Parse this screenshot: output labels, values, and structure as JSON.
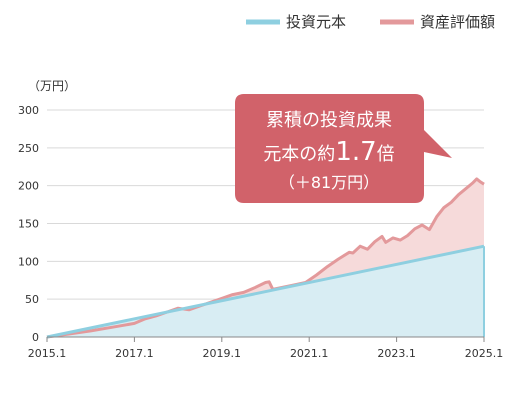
{
  "chart_data": {
    "type": "area",
    "unit_label": "（万円）",
    "ylim": [
      0,
      300
    ],
    "yticks": [
      0,
      50,
      100,
      150,
      200,
      250,
      300
    ],
    "xlim": [
      "2015.1",
      "2025.1"
    ],
    "xticks": [
      "2015.1",
      "2017.1",
      "2019.1",
      "2021.1",
      "2023.1",
      "2025.1"
    ],
    "grid": true,
    "legend_position": "top-right",
    "series": [
      {
        "name": "投資元本",
        "color": "#8ecfe0",
        "fill": "#d8edf3",
        "points": [
          [
            "2015.1",
            0
          ],
          [
            "2025.1",
            120
          ]
        ]
      },
      {
        "name": "資産評価額",
        "color": "#e3999b",
        "fill": "#f6dada",
        "points": [
          [
            "2015.1",
            0
          ],
          [
            "2015.7",
            4
          ],
          [
            "2016.1",
            8
          ],
          [
            "2016.7",
            13
          ],
          [
            "2017.1",
            18
          ],
          [
            "2017.4",
            24
          ],
          [
            "2017.7",
            28
          ],
          [
            "2017.10",
            33
          ],
          [
            "2018.1",
            38
          ],
          [
            "2018.4",
            36
          ],
          [
            "2018.7",
            41
          ],
          [
            "2018.10",
            46
          ],
          [
            "2019.1",
            51
          ],
          [
            "2019.4",
            56
          ],
          [
            "2019.7",
            59
          ],
          [
            "2019.10",
            65
          ],
          [
            "2020.1",
            72
          ],
          [
            "2020.2",
            73
          ],
          [
            "2020.3",
            63
          ],
          [
            "2020.6",
            66
          ],
          [
            "2020.9",
            69
          ],
          [
            "2020.12",
            72
          ],
          [
            "2021.3",
            82
          ],
          [
            "2021.6",
            93
          ],
          [
            "2021.9",
            103
          ],
          [
            "2021.12",
            112
          ],
          [
            "2022.1",
            111
          ],
          [
            "2022.3",
            120
          ],
          [
            "2022.5",
            116
          ],
          [
            "2022.7",
            126
          ],
          [
            "2022.9",
            133
          ],
          [
            "2022.10",
            125
          ],
          [
            "2022.12",
            131
          ],
          [
            "2023.2",
            128
          ],
          [
            "2023.4",
            134
          ],
          [
            "2023.6",
            143
          ],
          [
            "2023.8",
            148
          ],
          [
            "2023.10",
            142
          ],
          [
            "2023.12",
            159
          ],
          [
            "2024.2",
            171
          ],
          [
            "2024.4",
            178
          ],
          [
            "2024.6",
            188
          ],
          [
            "2024.8",
            196
          ],
          [
            "2024.10",
            204
          ],
          [
            "2024.11",
            209
          ],
          [
            "2024.12",
            205
          ],
          [
            "2025.1",
            202
          ]
        ]
      }
    ],
    "annotation": {
      "line1": "累積の投資成果",
      "line2_prefix": "元本の約",
      "line2_value": "1.7",
      "line2_suffix": "倍",
      "line3": "（＋81万円）",
      "color": "#d1626a"
    }
  }
}
